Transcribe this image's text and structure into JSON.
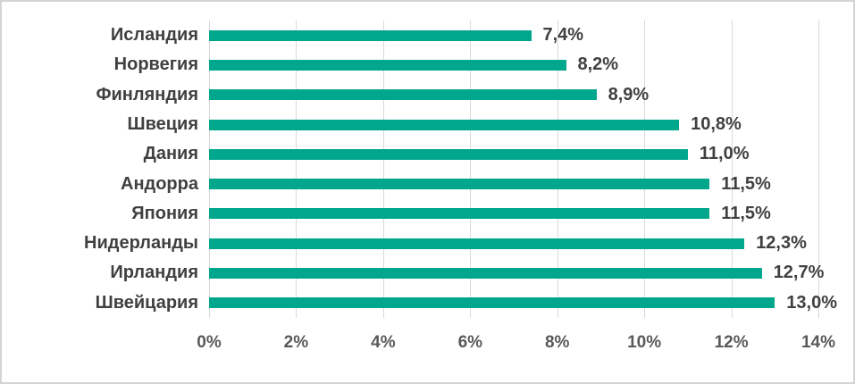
{
  "chart_data": {
    "type": "bar",
    "orientation": "horizontal",
    "categories": [
      "Исландия",
      "Норвегия",
      "Финляндия",
      "Швеция",
      "Дания",
      "Андорра",
      "Япония",
      "Нидерланды",
      "Ирландия",
      "Швейцария"
    ],
    "values": [
      7.4,
      8.2,
      8.9,
      10.8,
      11.0,
      11.5,
      11.5,
      12.3,
      12.7,
      13.0
    ],
    "value_labels": [
      "7,4%",
      "8,2%",
      "8,9%",
      "10,8%",
      "11,0%",
      "11,5%",
      "11,5%",
      "12,3%",
      "12,7%",
      "13,0%"
    ],
    "xlim": [
      0,
      14
    ],
    "xticks": [
      0,
      2,
      4,
      6,
      8,
      10,
      12,
      14
    ],
    "xtick_labels": [
      "0%",
      "2%",
      "4%",
      "6%",
      "8%",
      "10%",
      "12%",
      "14%"
    ],
    "grid": true,
    "legend_visible": false,
    "bar_color": "#00A78C",
    "gridline_color": "#D9D9D9",
    "label_color": "#404040",
    "tick_color": "#595959"
  }
}
